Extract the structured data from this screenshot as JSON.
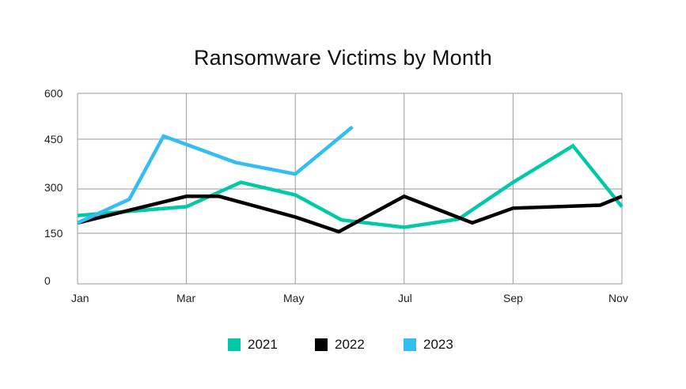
{
  "chart_data": {
    "type": "line",
    "title": "Ransomware Victims by Month",
    "xlabel": "",
    "ylabel": "",
    "ylim": [
      0,
      600
    ],
    "yticks": [
      0,
      150,
      300,
      450,
      600
    ],
    "xtick_labels": [
      "Jan",
      "Mar",
      "May",
      "Jul",
      "Sep",
      "Nov"
    ],
    "grid": true,
    "legend_position": "bottom",
    "x_unit_note": "x values are month positions, Jan = 0 ... Nov = 10",
    "series": [
      {
        "name": "2021",
        "color": "#00C9A7",
        "points": [
          {
            "x": 0,
            "y": 210
          },
          {
            "x": 2,
            "y": 240
          },
          {
            "x": 3,
            "y": 320
          },
          {
            "x": 4,
            "y": 280
          },
          {
            "x": 4.85,
            "y": 195
          },
          {
            "x": 6,
            "y": 170
          },
          {
            "x": 7,
            "y": 198
          },
          {
            "x": 8,
            "y": 320
          },
          {
            "x": 9.1,
            "y": 430
          },
          {
            "x": 10,
            "y": 240
          }
        ]
      },
      {
        "name": "2022",
        "color": "#000000",
        "points": [
          {
            "x": 0,
            "y": 185
          },
          {
            "x": 2,
            "y": 275
          },
          {
            "x": 2.6,
            "y": 275
          },
          {
            "x": 4,
            "y": 205
          },
          {
            "x": 4.8,
            "y": 155
          },
          {
            "x": 6,
            "y": 275
          },
          {
            "x": 7.25,
            "y": 185
          },
          {
            "x": 8,
            "y": 235
          },
          {
            "x": 9.6,
            "y": 245
          },
          {
            "x": 10,
            "y": 275
          }
        ]
      },
      {
        "name": "2023",
        "color": "#33BDF2",
        "points": [
          {
            "x": 0,
            "y": 185
          },
          {
            "x": 0.95,
            "y": 265
          },
          {
            "x": 1.58,
            "y": 460
          },
          {
            "x": 2.9,
            "y": 380
          },
          {
            "x": 4,
            "y": 345
          },
          {
            "x": 5.05,
            "y": 490
          }
        ]
      }
    ]
  },
  "title": "Ransomware Victims by Month",
  "yaxis": {
    "ticks": [
      "600",
      "450",
      "300",
      "150",
      "0"
    ]
  },
  "xaxis": {
    "ticks": [
      "Jan",
      "Mar",
      "May",
      "Jul",
      "Sep",
      "Nov"
    ]
  },
  "legend": {
    "items": [
      {
        "label": "2021",
        "color": "#00C9A7"
      },
      {
        "label": "2022",
        "color": "#000000"
      },
      {
        "label": "2023",
        "color": "#33BDF2"
      }
    ]
  }
}
